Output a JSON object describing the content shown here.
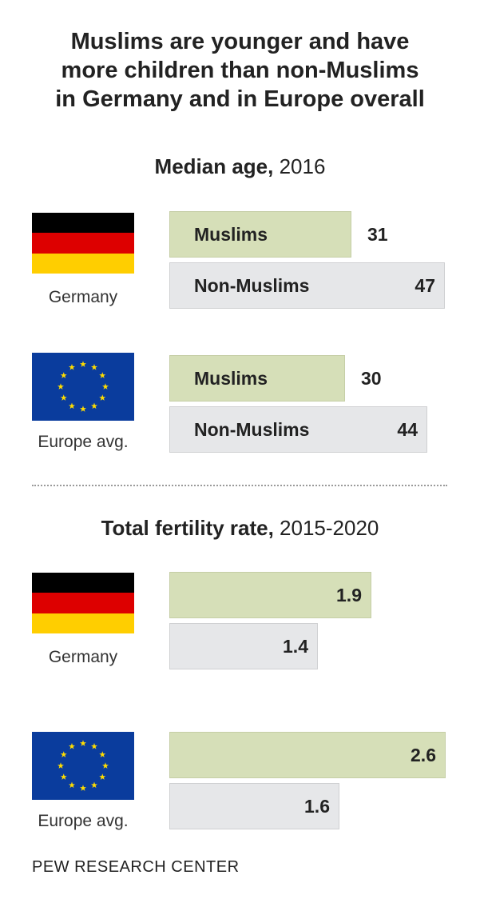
{
  "title_lines": [
    "Muslims are younger and have",
    "more children than non-Muslims",
    "in Germany and in Europe overall"
  ],
  "sections": {
    "age": {
      "title_bold": "Median age,",
      "title_rest": " 2016"
    },
    "fertility": {
      "title_bold": "Total fertility rate,",
      "title_rest": " 2015-2020"
    }
  },
  "places": {
    "germany": "Germany",
    "europe": "Europe avg."
  },
  "labels": {
    "muslims": "Muslims",
    "non_muslims": "Non-Muslims"
  },
  "colors": {
    "muslims_bar": "#d6dfb8",
    "non_muslims_bar": "#e6e7e9",
    "flag_de": [
      "#000000",
      "#dd0000",
      "#ffce00"
    ],
    "flag_eu_blue": "#0a3c9d",
    "flag_eu_star": "#ffdd00"
  },
  "icons": {
    "germany_flag": "germany-flag-icon",
    "eu_flag": "eu-flag-icon"
  },
  "source": "PEW RESEARCH CENTER",
  "chart_data": [
    {
      "type": "bar",
      "title": "Median age, 2016",
      "categories": [
        "Germany",
        "Europe avg."
      ],
      "series": [
        {
          "name": "Muslims",
          "values": [
            31,
            30
          ]
        },
        {
          "name": "Non-Muslims",
          "values": [
            47,
            44
          ]
        }
      ],
      "value_labels": {
        "Muslims": [
          "31",
          "30"
        ],
        "Non-Muslims": [
          "47",
          "44"
        ]
      },
      "xlim": [
        0,
        47
      ]
    },
    {
      "type": "bar",
      "title": "Total fertility rate, 2015-2020",
      "categories": [
        "Germany",
        "Europe avg."
      ],
      "series": [
        {
          "values": [
            1.9,
            2.6
          ]
        },
        {
          "values": [
            1.4,
            1.6
          ]
        }
      ],
      "value_labels": {
        "muslims": [
          "1.9",
          "2.6"
        ],
        "non_muslims": [
          "1.4",
          "1.6"
        ]
      },
      "xlim": [
        0,
        2.6
      ]
    }
  ]
}
